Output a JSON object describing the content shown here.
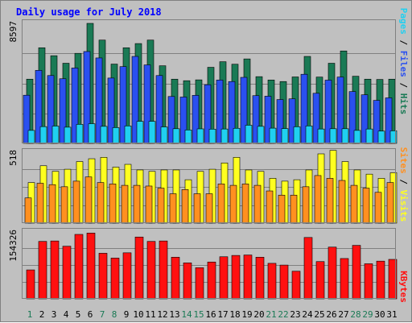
{
  "title": "Daily usage for July 2018",
  "colors": {
    "hits": "#1a7a55",
    "files": "#2a50f0",
    "pages": "#20d0f0",
    "visits": "#ffff20",
    "sites": "#ff9020",
    "kbytes": "#ff1010",
    "weekday_label": "#000000",
    "weekend_label": "#1a7a55",
    "title": "#0000ff"
  },
  "side_labels": {
    "top": {
      "pages": "Pages",
      "sep1": " / ",
      "files": "Files",
      "sep2": " / ",
      "hits": "Hits"
    },
    "middle": {
      "sites": "Sites",
      "sep": " / ",
      "visits": "Visits"
    },
    "bottom": {
      "kbytes": "KBytes"
    }
  },
  "chart_data": {
    "type": "bar",
    "categories": [
      "1",
      "2",
      "3",
      "4",
      "5",
      "6",
      "7",
      "8",
      "9",
      "10",
      "11",
      "12",
      "13",
      "14",
      "15",
      "16",
      "17",
      "18",
      "19",
      "20",
      "21",
      "22",
      "23",
      "24",
      "25",
      "26",
      "27",
      "28",
      "29",
      "30",
      "31"
    ],
    "weekend_days": [
      "1",
      "7",
      "8",
      "14",
      "15",
      "21",
      "22",
      "28",
      "29"
    ],
    "panels": [
      {
        "name": "hits-files-pages",
        "y_max_label": "8597",
        "ylim": [
          0,
          8597
        ],
        "grid": true,
        "series": [
          {
            "name": "Hits",
            "color": "#1a7a55",
            "values": [
              4600,
              6850,
              6280,
              5740,
              6450,
              8597,
              7400,
              5680,
              6850,
              7150,
              7400,
              5560,
              4600,
              4490,
              4550,
              5450,
              5850,
              5670,
              6050,
              4780,
              4540,
              4430,
              4760,
              6230,
              4750,
              5740,
              6620,
              4810,
              4600,
              4580,
              4600
            ]
          },
          {
            "name": "Files",
            "color": "#2a50f0",
            "values": [
              3450,
              5230,
              4860,
              4630,
              5400,
              6580,
              6120,
              4680,
              5500,
              6230,
              5620,
              4860,
              3360,
              3320,
              3440,
              4200,
              4540,
              4430,
              4730,
              3420,
              3380,
              3140,
              3190,
              4950,
              3590,
              4530,
              4750,
              3710,
              3480,
              3080,
              3260
            ]
          },
          {
            "name": "Pages",
            "color": "#20d0f0",
            "values": [
              930,
              1200,
              1240,
              1160,
              1360,
              1410,
              1220,
              1130,
              1250,
              1580,
              1580,
              1180,
              1050,
              960,
              1040,
              1020,
              1030,
              1080,
              1300,
              1220,
              1090,
              1060,
              1190,
              1250,
              1030,
              1050,
              1050,
              930,
              1030,
              880,
              900
            ]
          }
        ]
      },
      {
        "name": "sites-visits",
        "y_max_label": "518",
        "ylim": [
          0,
          518
        ],
        "grid": true,
        "series": [
          {
            "name": "Visits",
            "color": "#ffff20",
            "values": [
              290,
              410,
              370,
              385,
              440,
              460,
              470,
              400,
              420,
              380,
              370,
              380,
              380,
              310,
              370,
              385,
              430,
              470,
              380,
              370,
              320,
              300,
              310,
              380,
              495,
              520,
              440,
              380,
              350,
              320,
              360
            ]
          },
          {
            "name": "Sites",
            "color": "#ff9020",
            "values": [
              180,
              285,
              275,
              260,
              300,
              330,
              290,
              280,
              270,
              270,
              265,
              250,
              210,
              240,
              210,
              210,
              280,
              270,
              280,
              270,
              230,
              200,
              200,
              260,
              340,
              320,
              305,
              270,
              250,
              220,
              290
            ]
          }
        ]
      },
      {
        "name": "kbytes",
        "y_max_label": "154326",
        "ylim": [
          0,
          154326
        ],
        "grid": true,
        "series": [
          {
            "name": "KBytes",
            "color": "#ff1010",
            "values": [
              66000,
              131000,
              132000,
              120000,
              147000,
              150000,
              104000,
              93000,
              105000,
              141000,
              131000,
              132000,
              95000,
              82000,
              71000,
              84000,
              96000,
              99000,
              100000,
              95000,
              81000,
              77000,
              63000,
              140000,
              85000,
              118000,
              92000,
              122000,
              80000,
              86000,
              90000
            ]
          }
        ]
      }
    ]
  }
}
